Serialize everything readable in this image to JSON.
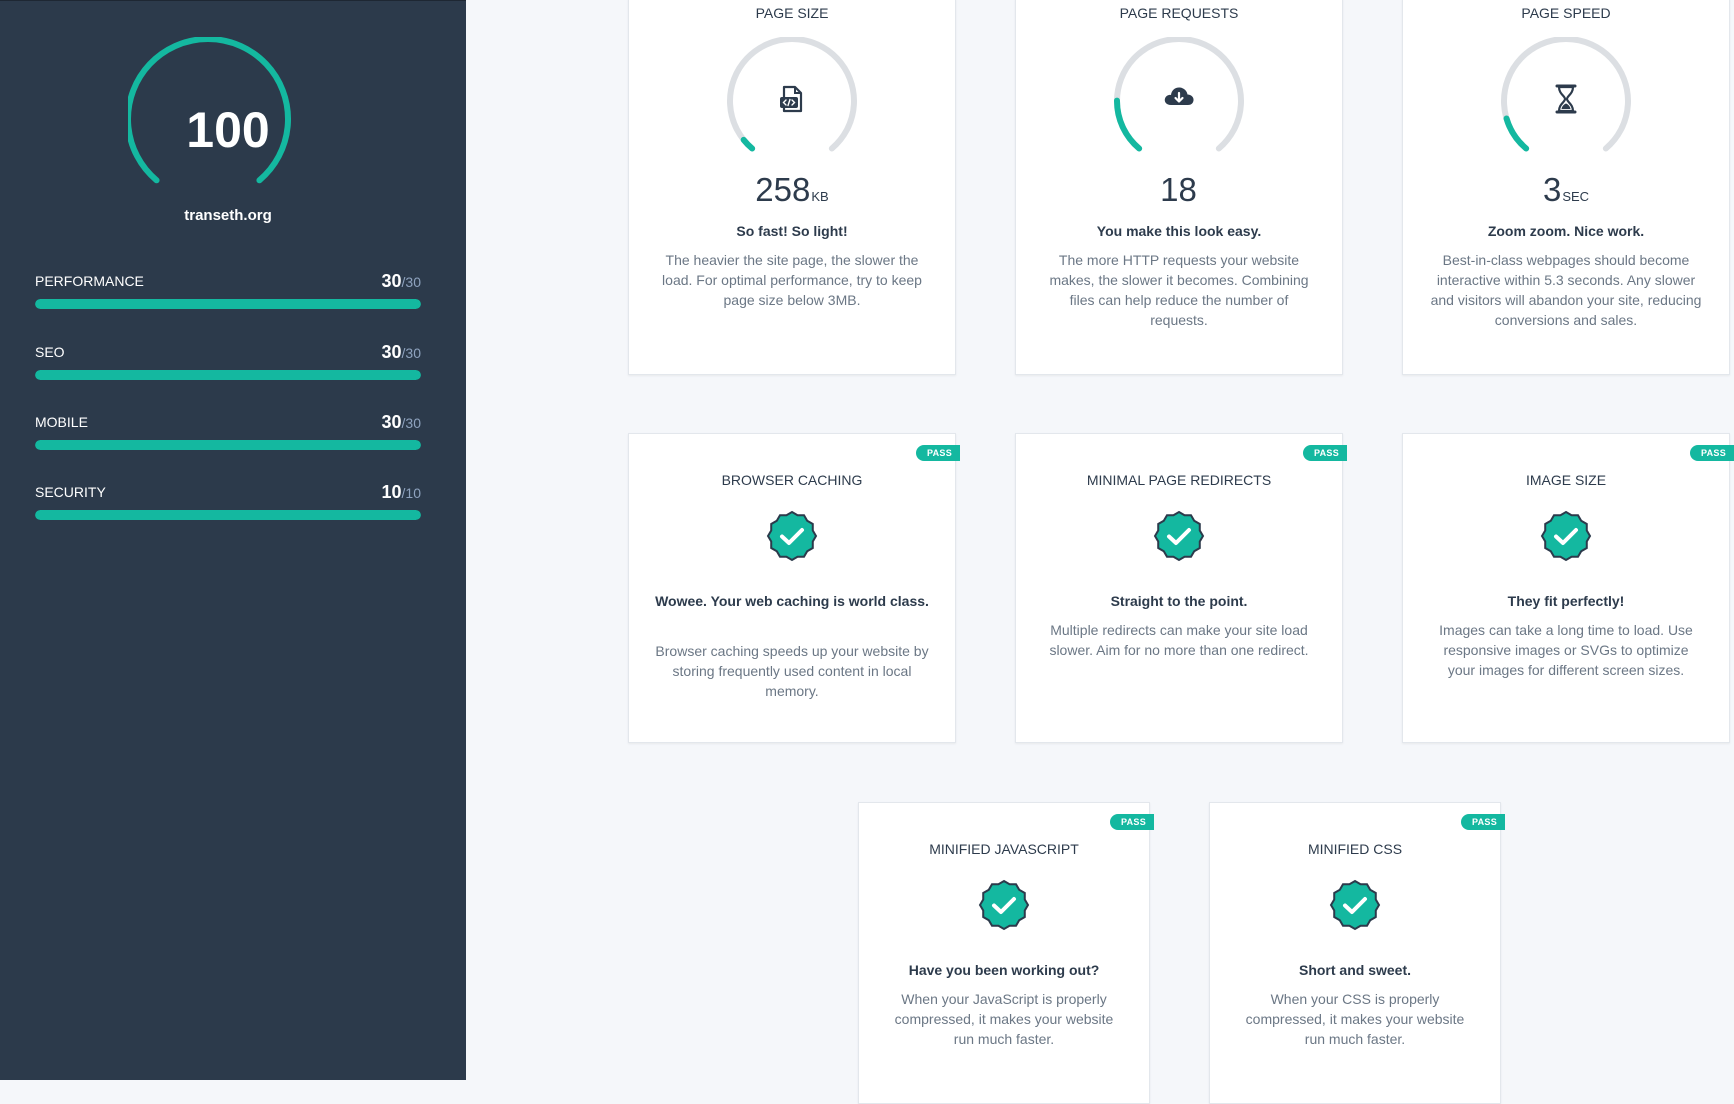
{
  "overall": {
    "score": "100",
    "score_value": 100,
    "domain": "transeth.org"
  },
  "categories": [
    {
      "label": "PERFORMANCE",
      "score": "30",
      "max": "/30",
      "fraction": 1.0
    },
    {
      "label": "SEO",
      "score": "30",
      "max": "/30",
      "fraction": 1.0
    },
    {
      "label": "MOBILE",
      "score": "30",
      "max": "/30",
      "fraction": 1.0
    },
    {
      "label": "SECURITY",
      "score": "10",
      "max": "/10",
      "fraction": 1.0
    }
  ],
  "metrics": [
    {
      "title": "PAGE SIZE",
      "icon": "code-file-icon",
      "value": "258",
      "unit": "KB",
      "gauge_fraction": 0.04,
      "heading": "So fast! So light!",
      "description": "The heavier the site page, the slower the load. For optimal performance, try to keep page size below 3MB."
    },
    {
      "title": "PAGE REQUESTS",
      "icon": "cloud-download-icon",
      "value": "18",
      "unit": "",
      "gauge_fraction": 0.18,
      "heading": "You make this look easy.",
      "description": "The more HTTP requests your website makes, the slower it becomes. Combining files can help reduce the number of requests."
    },
    {
      "title": "PAGE SPEED",
      "icon": "hourglass-icon",
      "value": "3",
      "unit": "SEC",
      "gauge_fraction": 0.12,
      "heading": "Zoom zoom. Nice work.",
      "description": "Best-in-class webpages should become interactive within 5.3 seconds. Any slower and visitors will abandon your site, reducing conversions and sales."
    }
  ],
  "checks": [
    {
      "badge": "PASS",
      "title": "BROWSER CACHING",
      "heading": "Wowee. Your web caching is world class.",
      "description": "Browser caching speeds up your website by storing frequently used content in local memory."
    },
    {
      "badge": "PASS",
      "title": "MINIMAL PAGE REDIRECTS",
      "heading": "Straight to the point.",
      "description": "Multiple redirects can make your site load slower. Aim for no more than one redirect."
    },
    {
      "badge": "PASS",
      "title": "IMAGE SIZE",
      "heading": "They fit perfectly!",
      "description": "Images can take a long time to load. Use responsive images or SVGs to optimize your images for different screen sizes."
    },
    {
      "badge": "PASS",
      "title": "MINIFIED JAVASCRIPT",
      "heading": "Have you been working out?",
      "description": "When your JavaScript is properly compressed, it makes your website run much faster."
    },
    {
      "badge": "PASS",
      "title": "MINIFIED CSS",
      "heading": "Short and sweet.",
      "description": "When your CSS is properly compressed, it makes your website run much faster."
    }
  ],
  "colors": {
    "accent": "#14b8a0",
    "sidebar_bg": "#2c3a4b",
    "gauge_track": "#dcdfe3",
    "text_dark": "#2d3b4c",
    "text_muted": "#6b7785"
  }
}
